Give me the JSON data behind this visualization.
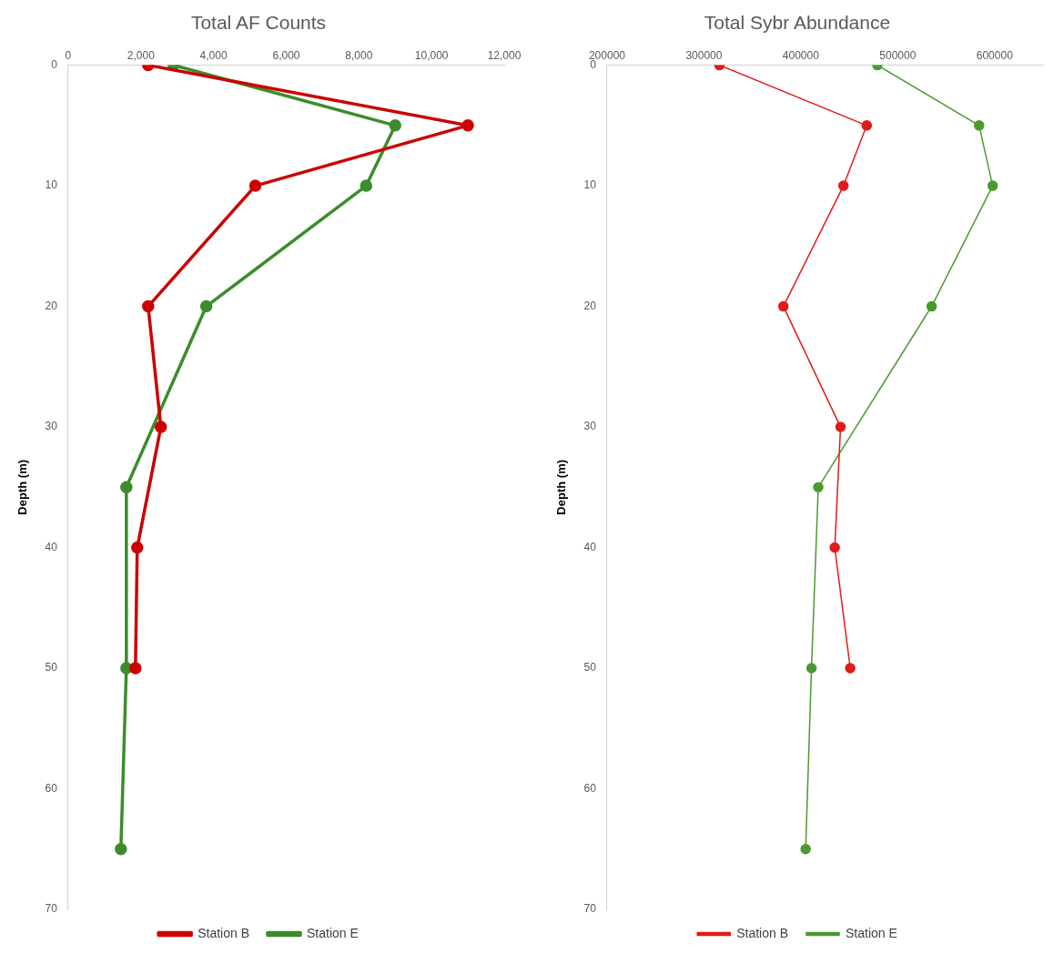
{
  "chart_data": [
    {
      "type": "line",
      "title": "Total AF Counts",
      "ylabel": "Depth (m)",
      "xlim": [
        0,
        12000
      ],
      "xticks": [
        {
          "value": 0,
          "label": "0"
        },
        {
          "value": 2000,
          "label": "2,000"
        },
        {
          "value": 4000,
          "label": "4,000"
        },
        {
          "value": 6000,
          "label": "6,000"
        },
        {
          "value": 8000,
          "label": "8,000"
        },
        {
          "value": 10000,
          "label": "10,000"
        },
        {
          "value": 12000,
          "label": "12,000"
        }
      ],
      "ylim": [
        70,
        0
      ],
      "yticks": [
        0,
        10,
        20,
        30,
        40,
        50,
        60,
        70
      ],
      "grid": false,
      "legend": "bottom",
      "marker": "circle",
      "line_style": "solid",
      "series": [
        {
          "name": "Station B",
          "color": "#cc0000",
          "x": [
            2200,
            11000,
            5150,
            2200,
            2550,
            1900,
            1850
          ],
          "values": [
            0,
            5,
            10,
            20,
            30,
            40,
            50
          ]
        },
        {
          "name": "Station E",
          "color": "#3c8c2c",
          "x": [
            2900,
            9000,
            8200,
            3800,
            1600,
            1600,
            1450
          ],
          "values": [
            0,
            5,
            10,
            20,
            35,
            50,
            65
          ]
        }
      ]
    },
    {
      "type": "line",
      "title": "Total Sybr Abundance",
      "ylabel": "Depth (m)",
      "xlim": [
        200000,
        650000
      ],
      "xticks": [
        200000,
        300000,
        400000,
        500000,
        600000
      ],
      "ylim": [
        70,
        0
      ],
      "yticks": [
        0,
        10,
        20,
        30,
        40,
        50,
        60,
        70
      ],
      "grid": false,
      "legend": "bottom",
      "marker": "circle",
      "line_style": "solid",
      "series": [
        {
          "name": "Station B",
          "color": "#e01b1b",
          "x": [
            316000,
            468000,
            444000,
            382000,
            441000,
            435000,
            451000
          ],
          "values": [
            0,
            5,
            10,
            20,
            30,
            40,
            50
          ]
        },
        {
          "name": "Station E",
          "color": "#4a9a30",
          "x": [
            479000,
            584000,
            598000,
            535000,
            418000,
            411000,
            405000
          ],
          "values": [
            0,
            5,
            10,
            20,
            35,
            50,
            65
          ]
        }
      ]
    }
  ]
}
